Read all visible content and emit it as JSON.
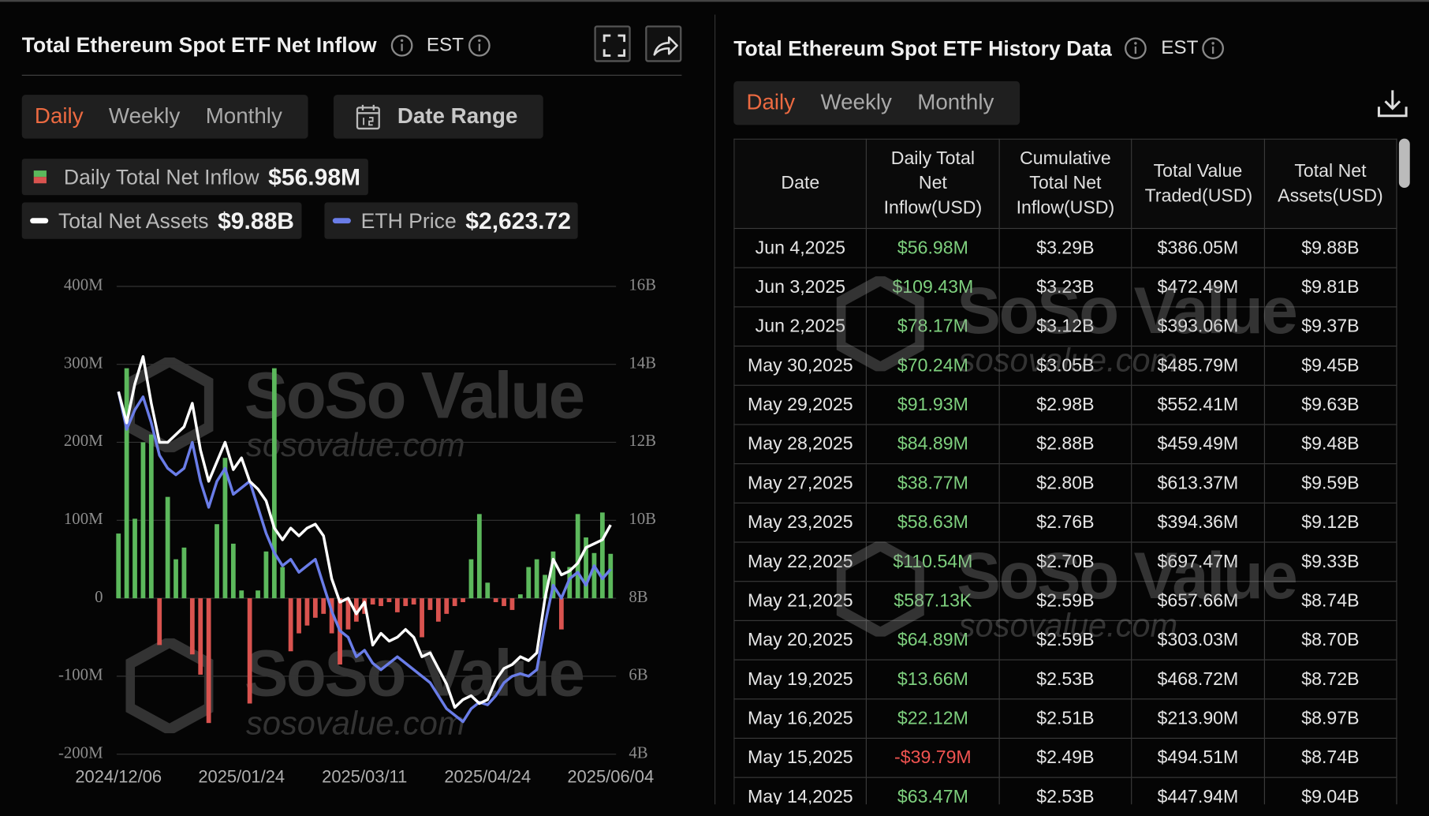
{
  "left_panel": {
    "title": "Total Ethereum Spot ETF Net Inflow",
    "timezone": "EST",
    "tabs": [
      "Daily",
      "Weekly",
      "Monthly"
    ],
    "date_range": "Date Range"
  },
  "right_panel": {
    "title": "Total Ethereum Spot ETF History Data",
    "timezone": "EST",
    "tabs": [
      "Daily",
      "Weekly",
      "Monthly"
    ]
  },
  "watermark": {
    "brand": "SoSo Value",
    "url": "sosovalue.com"
  },
  "chart_data": {
    "type": "bar",
    "categories": [
      "2024/12/06",
      null,
      null,
      null,
      null,
      null,
      null,
      null,
      null,
      null,
      null,
      null,
      null,
      null,
      null,
      "2025/01/24",
      null,
      null,
      null,
      null,
      null,
      null,
      null,
      null,
      null,
      null,
      null,
      null,
      null,
      null,
      "2025/03/11",
      null,
      null,
      null,
      null,
      null,
      null,
      null,
      null,
      null,
      null,
      null,
      null,
      null,
      null,
      "2025/04/24",
      null,
      null,
      null,
      null,
      null,
      null,
      null,
      null,
      null,
      null,
      null,
      null,
      null,
      null,
      "2025/06/04"
    ],
    "series": [
      {
        "name": "Daily Total Net Inflow",
        "current": "$56.98M",
        "type": "bar",
        "color": "#5cb85c",
        "negative_color": "#d9534f",
        "values": [
          83,
          295,
          102,
          200,
          210,
          -60,
          130,
          50,
          65,
          -72,
          -98,
          -160,
          95,
          180,
          70,
          10,
          -135,
          10,
          60,
          295,
          40,
          -68,
          -45,
          -35,
          -25,
          -20,
          -45,
          -85,
          -40,
          -30,
          -20,
          -8,
          -10,
          -5,
          -18,
          -10,
          -8,
          -50,
          -15,
          -30,
          -20,
          -10,
          -5,
          50,
          108,
          20,
          -5,
          -10,
          -15,
          5,
          40,
          50,
          30,
          60,
          -40,
          40,
          108,
          78,
          58,
          110,
          56.98
        ]
      },
      {
        "name": "Total Net Assets",
        "current": "$9.88B",
        "type": "line",
        "axis": "y2",
        "color": "#ffffff",
        "values": [
          13.3,
          12.5,
          13.5,
          14.2,
          13.0,
          12.0,
          12.0,
          12.2,
          12.4,
          13.0,
          11.8,
          11.0,
          11.5,
          12.0,
          11.3,
          11.6,
          11.0,
          10.8,
          10.5,
          9.8,
          9.5,
          9.8,
          9.6,
          9.8,
          9.9,
          9.6,
          8.5,
          7.9,
          8.0,
          7.6,
          7.9,
          6.8,
          7.1,
          6.9,
          7.0,
          7.2,
          7.0,
          6.5,
          6.6,
          6.2,
          5.8,
          5.2,
          5.4,
          5.5,
          5.3,
          5.4,
          5.9,
          6.2,
          6.3,
          6.5,
          6.4,
          6.6,
          8.0,
          9.0,
          8.6,
          8.7,
          8.9,
          9.3,
          9.4,
          9.5,
          9.88
        ]
      },
      {
        "name": "ETH Price",
        "current": "$2,623.72",
        "type": "line",
        "axis": "y3",
        "color": "#6a7de8",
        "values": [
          3990,
          3700,
          3850,
          3950,
          3750,
          3500,
          3400,
          3350,
          3400,
          3600,
          3300,
          3100,
          3300,
          3400,
          3200,
          3250,
          3300,
          3100,
          2900,
          2750,
          2650,
          2700,
          2600,
          2650,
          2700,
          2500,
          2300,
          2150,
          2100,
          1950,
          2000,
          1900,
          1850,
          1900,
          1950,
          1900,
          1850,
          1800,
          1750,
          1650,
          1550,
          1500,
          1450,
          1550,
          1600,
          1580,
          1650,
          1750,
          1800,
          1820,
          1800,
          1850,
          2200,
          2500,
          2400,
          2550,
          2600,
          2500,
          2650,
          2550,
          2623.72
        ]
      }
    ],
    "ylim": [
      -200,
      400
    ],
    "yticks": [
      {
        "value": -200,
        "label": "-200M"
      },
      {
        "value": -100,
        "label": "-100M"
      },
      0,
      {
        "value": 100,
        "label": "100M"
      },
      {
        "value": 200,
        "label": "200M"
      },
      {
        "value": 300,
        "label": "300M"
      },
      {
        "value": 400,
        "label": "400M"
      }
    ],
    "y2lim": [
      4,
      16
    ],
    "y2ticks": [
      {
        "value": 4,
        "label": "4B"
      },
      {
        "value": 6,
        "label": "6B"
      },
      {
        "value": 8,
        "label": "8B"
      },
      {
        "value": 10,
        "label": "10B"
      },
      {
        "value": 12,
        "label": "12B"
      },
      {
        "value": 14,
        "label": "14B"
      },
      {
        "value": 16,
        "label": "16B"
      }
    ],
    "y3lim": [
      1200,
      4800
    ],
    "grid": true
  },
  "table": {
    "columns": [
      "Date",
      "Daily Total Net Inflow(USD)",
      "Cumulative Total Net Inflow(USD)",
      "Total Value Traded(USD)",
      "Total Net Assets(USD)"
    ],
    "rows": [
      [
        "Jun 4,2025",
        "$56.98M",
        "$3.29B",
        "$386.05M",
        "$9.88B"
      ],
      [
        "Jun 3,2025",
        "$109.43M",
        "$3.23B",
        "$472.49M",
        "$9.81B"
      ],
      [
        "Jun 2,2025",
        "$78.17M",
        "$3.12B",
        "$393.06M",
        "$9.37B"
      ],
      [
        "May 30,2025",
        "$70.24M",
        "$3.05B",
        "$485.79M",
        "$9.45B"
      ],
      [
        "May 29,2025",
        "$91.93M",
        "$2.98B",
        "$552.41M",
        "$9.63B"
      ],
      [
        "May 28,2025",
        "$84.89M",
        "$2.88B",
        "$459.49M",
        "$9.48B"
      ],
      [
        "May 27,2025",
        "$38.77M",
        "$2.80B",
        "$613.37M",
        "$9.59B"
      ],
      [
        "May 23,2025",
        "$58.63M",
        "$2.76B",
        "$394.36M",
        "$9.12B"
      ],
      [
        "May 22,2025",
        "$110.54M",
        "$2.70B",
        "$697.47M",
        "$9.33B"
      ],
      [
        "May 21,2025",
        "$587.13K",
        "$2.59B",
        "$657.66M",
        "$8.74B"
      ],
      [
        "May 20,2025",
        "$64.89M",
        "$2.59B",
        "$303.03M",
        "$8.70B"
      ],
      [
        "May 19,2025",
        "$13.66M",
        "$2.53B",
        "$468.72M",
        "$8.72B"
      ],
      [
        "May 16,2025",
        "$22.12M",
        "$2.51B",
        "$213.90M",
        "$8.97B"
      ],
      [
        "May 15,2025",
        "-$39.79M",
        "$2.49B",
        "$494.51M",
        "$8.74B"
      ],
      [
        "May 14,2025",
        "$63.47M",
        "$2.53B",
        "$447.94M",
        "$9.04B"
      ]
    ]
  }
}
